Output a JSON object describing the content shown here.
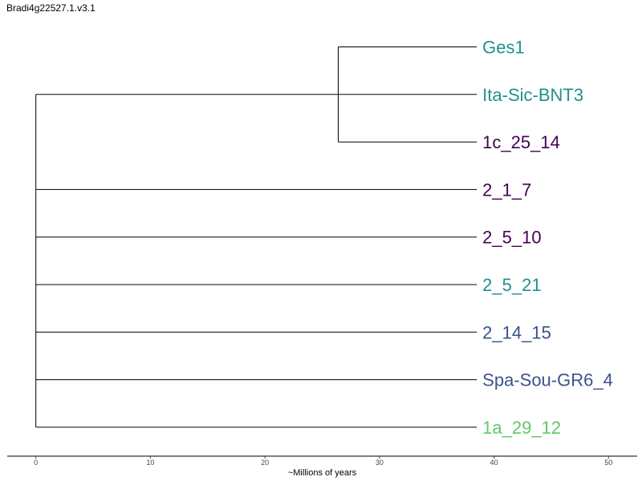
{
  "title": "Bradi4g22527.1.v3.1",
  "axis": {
    "label": "~Millions of years",
    "ticks": [
      0,
      10,
      20,
      30,
      40,
      50
    ],
    "xlim": [
      -2.5,
      52.5
    ]
  },
  "colors": {
    "teal": "#21918c",
    "purple": "#440154",
    "blue": "#3b528b",
    "green": "#5ec962"
  },
  "tree": {
    "root_x": 0,
    "tip_x": 38.5,
    "clade_node_x": 26.4,
    "tips": [
      {
        "label": "Ges1",
        "color": "#21918c",
        "in_clade": true
      },
      {
        "label": "Ita-Sic-BNT3",
        "color": "#21918c",
        "in_clade": true
      },
      {
        "label": "1c_25_14",
        "color": "#440154",
        "in_clade": true
      },
      {
        "label": "2_1_7",
        "color": "#440154",
        "in_clade": false
      },
      {
        "label": "2_5_10",
        "color": "#440154",
        "in_clade": false
      },
      {
        "label": "2_5_21",
        "color": "#21918c",
        "in_clade": false
      },
      {
        "label": "2_14_15",
        "color": "#3b528b",
        "in_clade": false
      },
      {
        "label": "Spa-Sou-GR6_4",
        "color": "#3b528b",
        "in_clade": false
      },
      {
        "label": "1a_29_12",
        "color": "#5ec962",
        "in_clade": false
      }
    ]
  }
}
